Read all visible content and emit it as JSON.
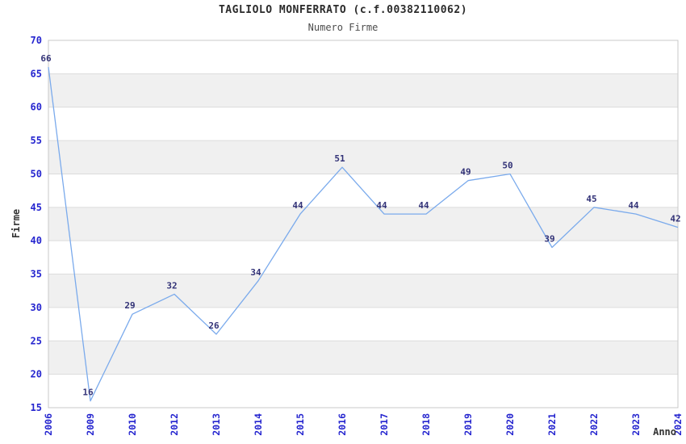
{
  "page": {
    "title": "TAGLIOLO MONFERRATO (c.f.00382110062)",
    "subtitle": "Numero Firme"
  },
  "chart_data": {
    "type": "line",
    "title": "TAGLIOLO MONFERRATO (c.f.00382110062)",
    "subtitle": "Numero Firme",
    "xlabel": "Anno",
    "ylabel": "Firme",
    "categories": [
      "2006",
      "2009",
      "2010",
      "2012",
      "2013",
      "2014",
      "2015",
      "2016",
      "2017",
      "2018",
      "2019",
      "2020",
      "2021",
      "2022",
      "2023",
      "2024"
    ],
    "values": [
      66,
      16,
      29,
      32,
      26,
      34,
      44,
      51,
      44,
      44,
      49,
      50,
      39,
      45,
      44,
      42
    ],
    "ylim": [
      15,
      70
    ],
    "ytick_step": 5,
    "grid": true,
    "legend": "none",
    "band_fill": true,
    "colors": {
      "line": "#7aaaec",
      "tick_label": "#2525cf",
      "data_label": "#323277",
      "band": "#f0f0f0",
      "gridline": "#dcdcdc",
      "border": "#c8c8c8",
      "title": "#2b2b2b",
      "subtitle": "#4d4d4d",
      "axis_label": "#333333"
    }
  }
}
